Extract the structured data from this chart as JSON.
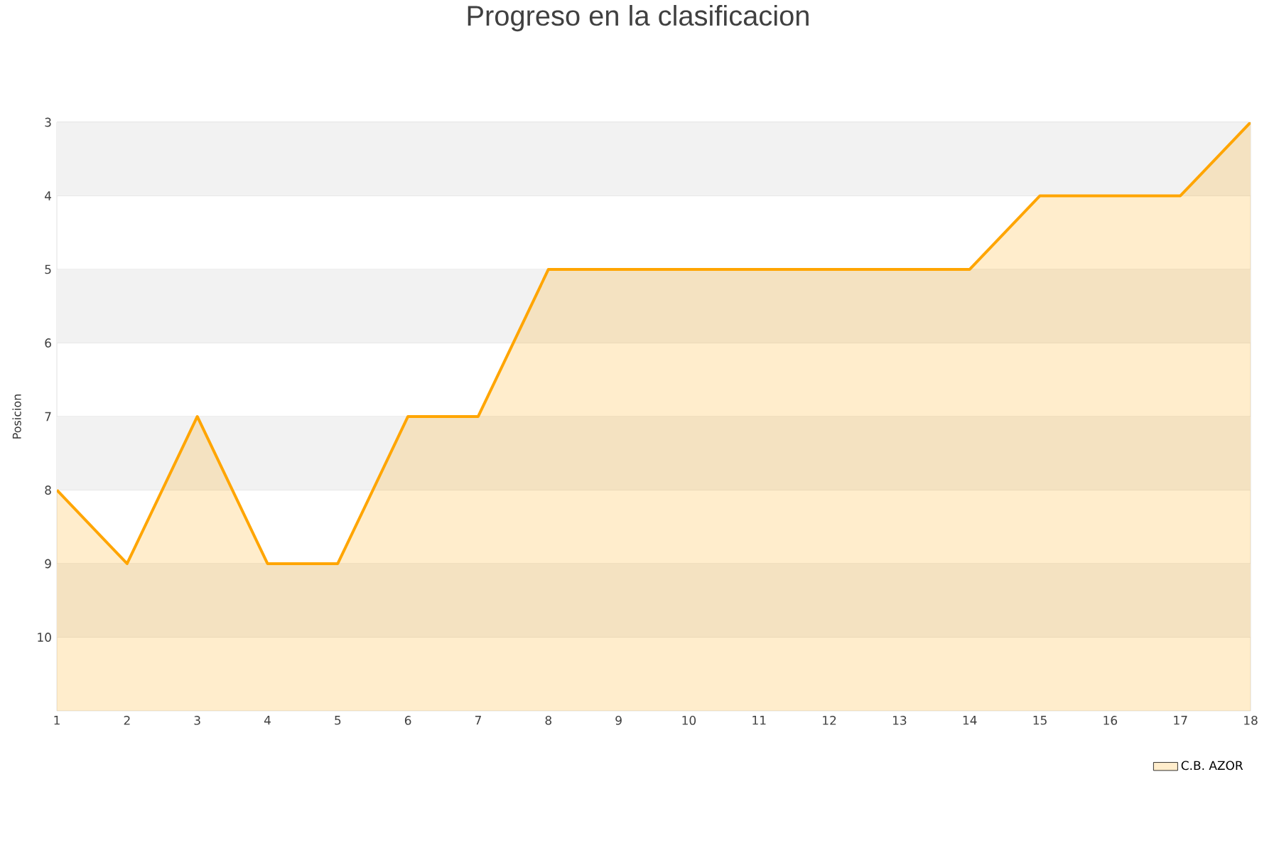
{
  "chart_data": {
    "type": "area",
    "title": "Progreso en la clasificacion",
    "ylabel": "Posicion",
    "x": [
      1,
      2,
      3,
      4,
      5,
      6,
      7,
      8,
      9,
      10,
      11,
      12,
      13,
      14,
      15,
      16,
      17,
      18
    ],
    "series": [
      {
        "name": "C.B. AZOR",
        "color": "#ffa500",
        "values": [
          8,
          9,
          7,
          9,
          9,
          7,
          7,
          5,
          5,
          5,
          5,
          5,
          5,
          5,
          4,
          4,
          4,
          3
        ]
      }
    ],
    "xlim": [
      1,
      18
    ],
    "xticks": [
      1,
      2,
      3,
      4,
      5,
      6,
      7,
      8,
      9,
      10,
      11,
      12,
      13,
      14,
      15,
      16,
      17,
      18
    ],
    "ylim": [
      11,
      3
    ],
    "yticks": [
      3,
      4,
      5,
      6,
      7,
      8,
      9,
      10
    ],
    "grid": "y",
    "legend": "bottom right"
  }
}
